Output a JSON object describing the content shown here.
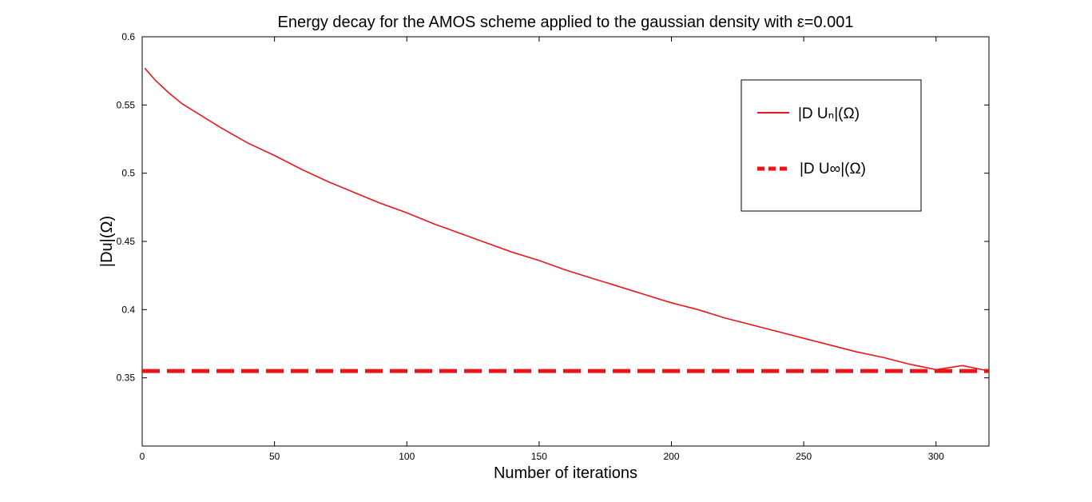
{
  "chart_data": {
    "type": "line",
    "title": "Energy decay for the AMOS scheme applied to the gaussian density with ε=0.001",
    "xlabel": "Number of iterations",
    "ylabel": "|Du|(Ω)",
    "xlim": [
      0,
      320
    ],
    "ylim": [
      0.3,
      0.6
    ],
    "xticks": [
      0,
      50,
      100,
      150,
      200,
      250,
      300
    ],
    "yticks": [
      0.35,
      0.4,
      0.45,
      0.5,
      0.55,
      0.6
    ],
    "xtick_labels": [
      "0",
      "50",
      "100",
      "150",
      "200",
      "250",
      "300"
    ],
    "ytick_labels": [
      "0.35",
      "0.4",
      "0.45",
      "0.5",
      "0.55",
      "0.6"
    ],
    "grid": false,
    "legend_position": "top-right",
    "series": [
      {
        "name": "|D Uₙ|(Ω)",
        "style": "solid",
        "color": "#e8161b",
        "x": [
          1,
          5,
          10,
          15,
          20,
          30,
          40,
          50,
          60,
          70,
          80,
          90,
          100,
          110,
          120,
          130,
          140,
          150,
          160,
          170,
          180,
          190,
          200,
          210,
          220,
          230,
          240,
          250,
          260,
          270,
          280,
          290,
          300,
          310,
          320
        ],
        "y": [
          0.577,
          0.568,
          0.559,
          0.551,
          0.545,
          0.533,
          0.522,
          0.513,
          0.503,
          0.494,
          0.486,
          0.478,
          0.471,
          0.463,
          0.456,
          0.449,
          0.442,
          0.436,
          0.429,
          0.423,
          0.417,
          0.411,
          0.405,
          0.4,
          0.394,
          0.389,
          0.384,
          0.379,
          0.374,
          0.369,
          0.365,
          0.36,
          0.356,
          0.359,
          0.355
        ]
      },
      {
        "name": "|D U∞|(Ω)",
        "style": "dashed",
        "color": "#e8161b",
        "x": [
          0,
          320
        ],
        "y": [
          0.355,
          0.355
        ]
      }
    ]
  }
}
